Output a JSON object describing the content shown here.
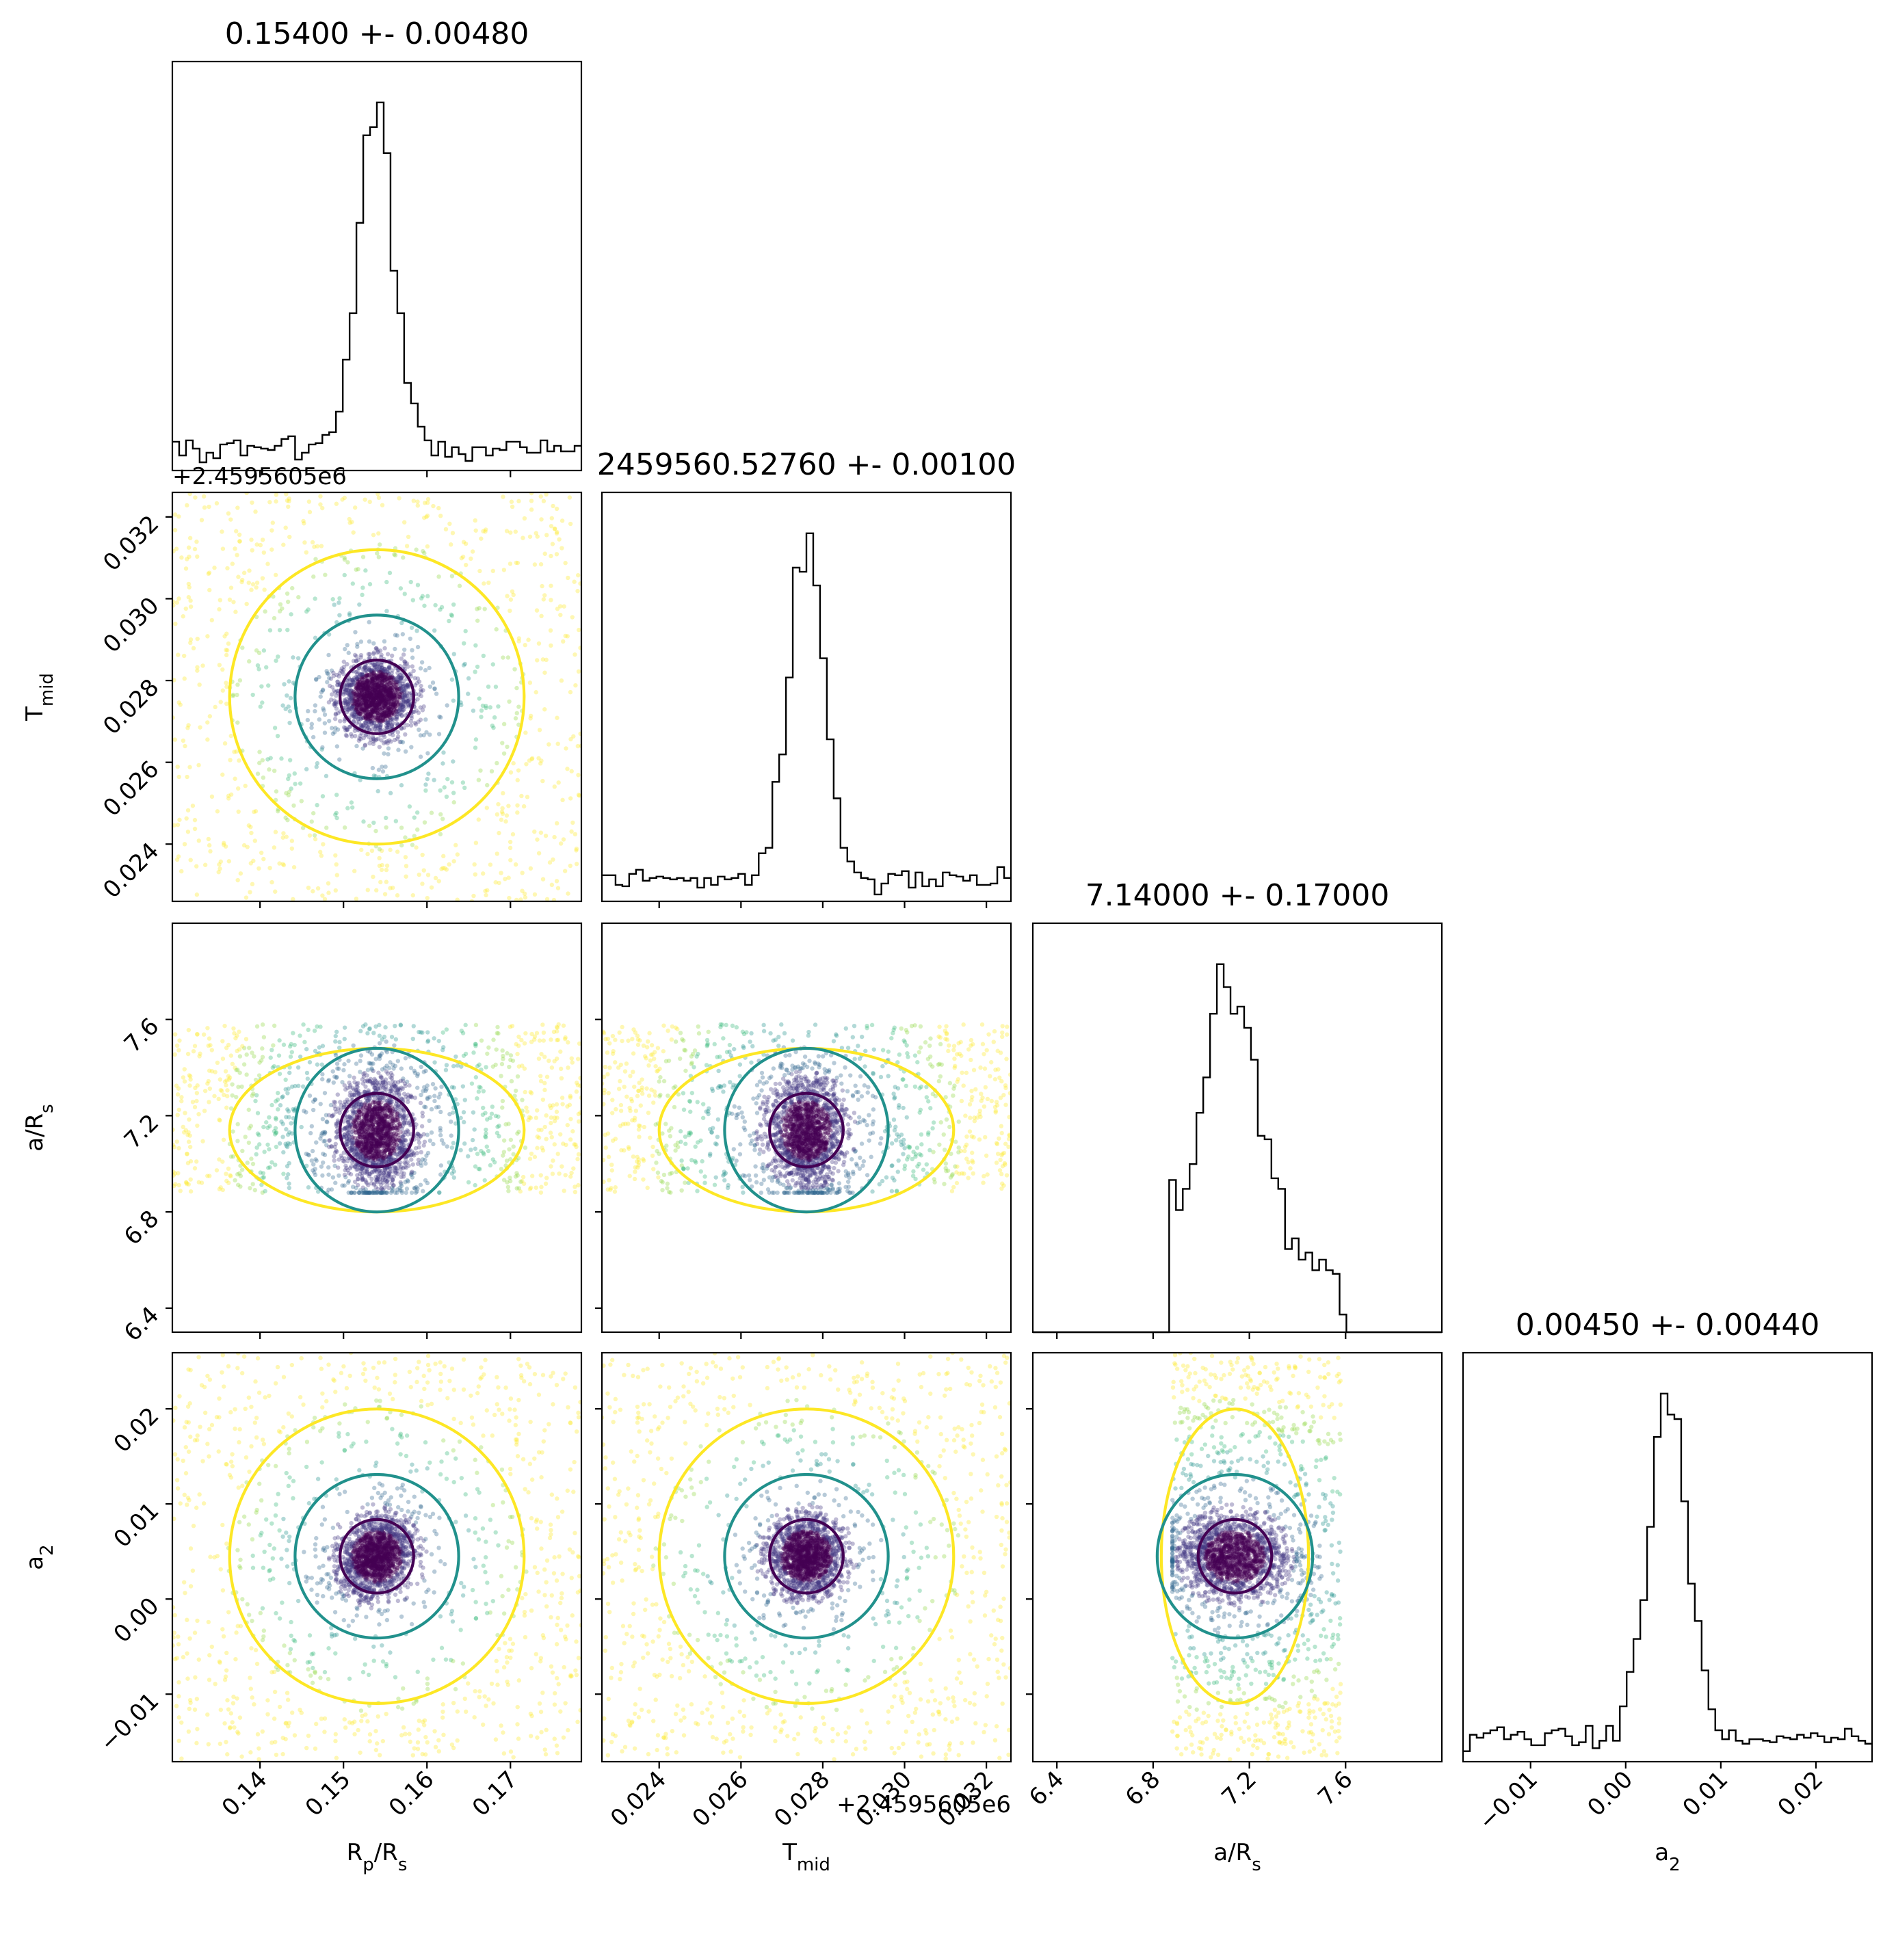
{
  "colors": {
    "level_1": "#fde725",
    "level_2": "#21918c",
    "level_3": "#440154",
    "scatter": [
      "#fde725",
      "#90d743",
      "#35b779",
      "#21918c",
      "#31688e",
      "#443983",
      "#440154"
    ]
  },
  "chart_data": {
    "type": "scatter",
    "subtype": "corner_plot",
    "parameters": [
      {
        "name": "Rp/Rs",
        "label": "R",
        "label_sub_1": "p",
        "label_mid": "/R",
        "label_sub_2": "s",
        "range": [
          0.1295,
          0.1785
        ],
        "ticks": [
          0.14,
          0.15,
          0.16,
          0.17
        ],
        "tick_labels": [
          "0.14",
          "0.15",
          "0.16",
          "0.17"
        ],
        "mean": 0.154,
        "std": 0.0048,
        "title": "0.15400 +- 0.00480",
        "offset": ""
      },
      {
        "name": "Tmid",
        "label": "T",
        "label_sub_1": "mid",
        "label_mid": "",
        "label_sub_2": "",
        "range": [
          0.0226,
          0.0326
        ],
        "ticks": [
          0.024,
          0.026,
          0.028,
          0.03,
          0.032
        ],
        "tick_labels": [
          "0.024",
          "0.026",
          "0.028",
          "0.030",
          "0.032"
        ],
        "mean": 0.0276,
        "std": 0.001,
        "title": "2459560.52760 +- 0.00100",
        "offset": "+2.4595605e6"
      },
      {
        "name": "a/Rs",
        "label": "a/R",
        "label_sub_1": "s",
        "label_mid": "",
        "label_sub_2": "",
        "range": [
          6.3,
          8.0
        ],
        "ticks": [
          6.4,
          6.8,
          7.2,
          7.6
        ],
        "tick_labels": [
          "6.4",
          "6.8",
          "7.2",
          "7.6"
        ],
        "mean": 7.14,
        "std": 0.17,
        "title": "7.14000 +- 0.17000",
        "offset": "",
        "uniform_bounds": [
          6.88,
          7.58
        ]
      },
      {
        "name": "a2",
        "label": "a",
        "label_sub_1": "2",
        "label_mid": "",
        "label_sub_2": "",
        "range": [
          -0.0171,
          0.0259
        ],
        "ticks": [
          -0.01,
          0.0,
          0.01,
          0.02
        ],
        "tick_labels": [
          "−0.01",
          "0.00",
          "0.01",
          "0.02"
        ],
        "mean": 0.0045,
        "std": 0.0044,
        "title": "0.00450 +- 0.00440",
        "offset": ""
      }
    ],
    "histograms": [
      {
        "param": "Rp/Rs",
        "description": "peaked near 0.154 with broad wings"
      },
      {
        "param": "Tmid",
        "description": "peaked near 0.0276 with broad wings"
      },
      {
        "param": "a/Rs",
        "description": "bounded between 6.88 and 7.58, peak near 7.1"
      },
      {
        "param": "a2",
        "description": "peaked near 0.0045 with broad wings"
      }
    ],
    "contour_levels": 3,
    "grid": false,
    "legend": "none"
  }
}
